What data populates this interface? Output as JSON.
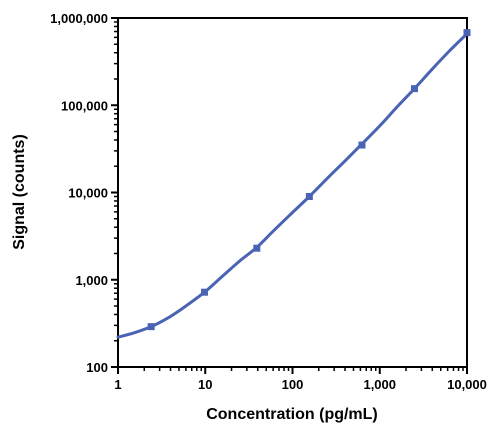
{
  "chart_data": {
    "type": "scatter",
    "title": "",
    "xlabel": "Concentration (pg/mL)",
    "ylabel": "Signal (counts)",
    "xscale": "log",
    "yscale": "log",
    "xlim": [
      1,
      10000
    ],
    "ylim": [
      100,
      1000000
    ],
    "x_ticks": [
      {
        "value": 1,
        "label": "1"
      },
      {
        "value": 10,
        "label": "10"
      },
      {
        "value": 100,
        "label": "100"
      },
      {
        "value": 1000,
        "label": "1,000"
      },
      {
        "value": 10000,
        "label": "10,000"
      }
    ],
    "y_ticks": [
      {
        "value": 100,
        "label": "100"
      },
      {
        "value": 1000,
        "label": "1,000"
      },
      {
        "value": 10000,
        "label": "10,000"
      },
      {
        "value": 100000,
        "label": "100,000"
      },
      {
        "value": 1000000,
        "label": "1,000,000"
      }
    ],
    "grid": false,
    "legend": "none",
    "color": "#4a63b3",
    "series": [
      {
        "points": [
          {
            "x": 2.4,
            "y": 290
          },
          {
            "x": 9.8,
            "y": 720
          },
          {
            "x": 39,
            "y": 2300
          },
          {
            "x": 156,
            "y": 9000
          },
          {
            "x": 625,
            "y": 35000
          },
          {
            "x": 2500,
            "y": 155000
          },
          {
            "x": 10000,
            "y": 680000
          }
        ]
      }
    ],
    "fit_curve": [
      {
        "x": 1,
        "y": 220
      },
      {
        "x": 1.5,
        "y": 245
      },
      {
        "x": 2.4,
        "y": 290
      },
      {
        "x": 4,
        "y": 380
      },
      {
        "x": 6,
        "y": 500
      },
      {
        "x": 9.8,
        "y": 720
      },
      {
        "x": 15,
        "y": 1050
      },
      {
        "x": 25,
        "y": 1650
      },
      {
        "x": 39,
        "y": 2350
      },
      {
        "x": 60,
        "y": 3600
      },
      {
        "x": 100,
        "y": 5900
      },
      {
        "x": 156,
        "y": 9000
      },
      {
        "x": 250,
        "y": 14500
      },
      {
        "x": 400,
        "y": 23000
      },
      {
        "x": 625,
        "y": 36000
      },
      {
        "x": 1000,
        "y": 58000
      },
      {
        "x": 1600,
        "y": 97000
      },
      {
        "x": 2500,
        "y": 155000
      },
      {
        "x": 4000,
        "y": 260000
      },
      {
        "x": 6300,
        "y": 420000
      },
      {
        "x": 10000,
        "y": 660000
      }
    ]
  }
}
